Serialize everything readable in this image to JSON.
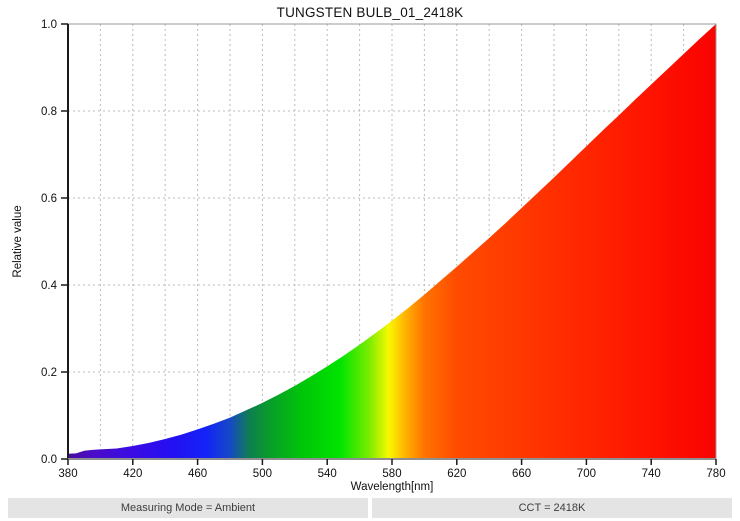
{
  "title": "TUNGSTEN BULB_01_2418K",
  "footer": {
    "measuring_mode": "Measuring Mode = Ambient",
    "cct": "CCT = 2418K"
  },
  "chart_data": {
    "type": "area",
    "title": "TUNGSTEN BULB_01_2418K",
    "xlabel": "Wavelength[nm]",
    "ylabel": "Relative value",
    "xlim": [
      380,
      780
    ],
    "ylim": [
      0,
      1.0
    ],
    "x_tick_labels": [
      380,
      420,
      460,
      500,
      540,
      580,
      620,
      660,
      700,
      740,
      780
    ],
    "y_tick_labels": [
      0.0,
      0.2,
      0.4,
      0.6,
      0.8,
      1.0
    ],
    "x_grid_step": 20,
    "y_grid_step": 0.2,
    "grid": true,
    "legend": "none",
    "x": [
      380,
      385,
      390,
      395,
      400,
      410,
      420,
      430,
      440,
      450,
      460,
      470,
      480,
      490,
      500,
      510,
      520,
      530,
      540,
      550,
      560,
      570,
      580,
      590,
      600,
      610,
      620,
      630,
      640,
      650,
      660,
      670,
      680,
      690,
      700,
      710,
      720,
      730,
      740,
      750,
      760,
      770,
      780
    ],
    "values": [
      0.012,
      0.013,
      0.019,
      0.021,
      0.022,
      0.024,
      0.03,
      0.037,
      0.046,
      0.056,
      0.068,
      0.081,
      0.095,
      0.112,
      0.129,
      0.148,
      0.168,
      0.19,
      0.213,
      0.237,
      0.263,
      0.29,
      0.318,
      0.347,
      0.378,
      0.41,
      0.442,
      0.475,
      0.508,
      0.542,
      0.577,
      0.612,
      0.647,
      0.683,
      0.719,
      0.755,
      0.79,
      0.826,
      0.861,
      0.896,
      0.931,
      0.966,
      1.0
    ],
    "fill": "visible-spectrum-gradient",
    "gradient_stops": [
      {
        "nm": 380,
        "color": "#470F9B"
      },
      {
        "nm": 395,
        "color": "#4A0DC8"
      },
      {
        "nm": 420,
        "color": "#3A0BE4"
      },
      {
        "nm": 445,
        "color": "#2310F2"
      },
      {
        "nm": 465,
        "color": "#1423F8"
      },
      {
        "nm": 480,
        "color": "#1649C6"
      },
      {
        "nm": 492,
        "color": "#0E7E50"
      },
      {
        "nm": 505,
        "color": "#089E28"
      },
      {
        "nm": 525,
        "color": "#00C608"
      },
      {
        "nm": 548,
        "color": "#00E400"
      },
      {
        "nm": 566,
        "color": "#7CEC00"
      },
      {
        "nm": 578,
        "color": "#F8F800"
      },
      {
        "nm": 588,
        "color": "#FFB400"
      },
      {
        "nm": 600,
        "color": "#FF7300"
      },
      {
        "nm": 620,
        "color": "#FF4B00"
      },
      {
        "nm": 660,
        "color": "#FF3800"
      },
      {
        "nm": 720,
        "color": "#FF1C00"
      },
      {
        "nm": 780,
        "color": "#FA0200"
      }
    ],
    "colors": {
      "grid": "#bbbbbb",
      "frame": "#9a9a9a",
      "y_axis": "#1a1a1a",
      "x_axis": "#8f8f8f",
      "tick": "#1a1a1a",
      "tick_text": "#111111"
    }
  }
}
